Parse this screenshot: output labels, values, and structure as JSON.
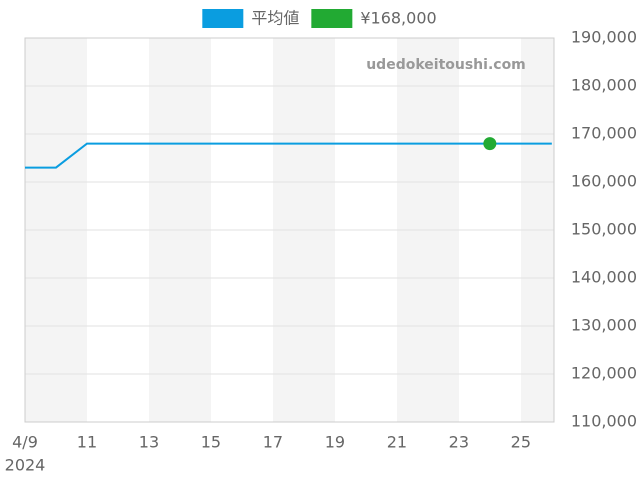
{
  "chart_data": {
    "type": "line",
    "categories": [
      "4/9",
      null,
      "11",
      null,
      "13",
      null,
      "15",
      null,
      "17",
      null,
      "19",
      null,
      "21",
      null,
      "23",
      null,
      "25",
      null
    ],
    "x_sub_label": "2024",
    "watermark": "udedokeitoushi.com",
    "series": [
      {
        "name": "平均値",
        "color": "#0a9de0",
        "values": [
          163000,
          163000,
          168000,
          168000,
          168000,
          168000,
          168000,
          168000,
          168000,
          168000,
          168000,
          168000,
          168000,
          168000,
          168000,
          168000,
          168000,
          168000
        ]
      },
      {
        "name": "¥168,000",
        "color": "#22aa33",
        "values": [
          null,
          null,
          null,
          null,
          null,
          null,
          null,
          null,
          null,
          null,
          null,
          null,
          null,
          null,
          null,
          168000,
          null,
          null
        ]
      }
    ],
    "ylim": [
      110000,
      190000
    ],
    "yticks": [
      {
        "value": 110000,
        "label": "110,000"
      },
      {
        "value": 120000,
        "label": "120,000"
      },
      {
        "value": 130000,
        "label": "130,000"
      },
      {
        "value": 140000,
        "label": "140,000"
      },
      {
        "value": 150000,
        "label": "150,000"
      },
      {
        "value": 160000,
        "label": "160,000"
      },
      {
        "value": 170000,
        "label": "170,000"
      },
      {
        "value": 180000,
        "label": "180,000"
      },
      {
        "value": 190000,
        "label": "190,000"
      }
    ],
    "grid": true,
    "y_axis_side": "right",
    "legend": "top"
  }
}
